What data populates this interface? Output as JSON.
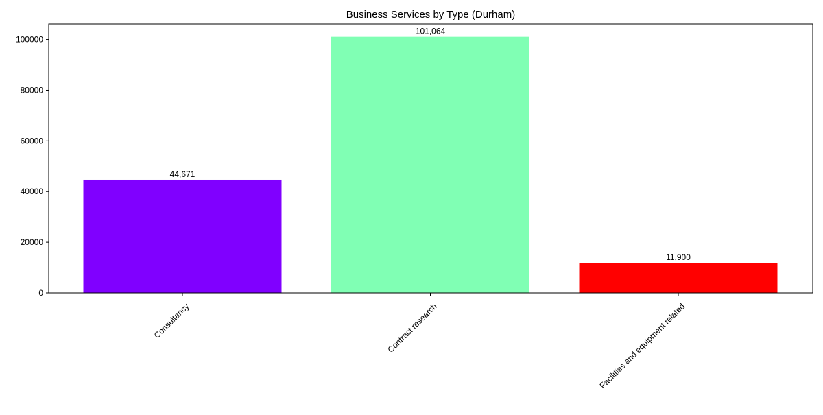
{
  "chart_data": {
    "type": "bar",
    "title": "Business Services by Type (Durham)",
    "xlabel": "",
    "ylabel": "",
    "categories": [
      "Consultancy",
      "Contract research",
      "Facilities and equipment related"
    ],
    "values": [
      44671,
      101064,
      11900
    ],
    "value_labels": [
      "44,671",
      "101,064",
      "11,900"
    ],
    "colors": [
      "#8000ff",
      "#80ffb4",
      "#ff0000"
    ],
    "ylim": [
      0,
      106117
    ],
    "yticks": [
      0,
      20000,
      40000,
      60000,
      80000,
      100000
    ],
    "ytick_labels": [
      "0",
      "20000",
      "40000",
      "60000",
      "80000",
      "100000"
    ],
    "grid": false,
    "legend": "none",
    "xtick_rotation_deg": 45
  }
}
